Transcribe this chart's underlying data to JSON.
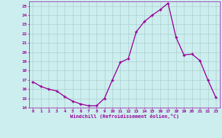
{
  "x": [
    0,
    1,
    2,
    3,
    4,
    5,
    6,
    7,
    8,
    9,
    10,
    11,
    12,
    13,
    14,
    15,
    16,
    17,
    18,
    19,
    20,
    21,
    22,
    23
  ],
  "y": [
    16.8,
    16.3,
    16.0,
    15.8,
    15.2,
    14.7,
    14.4,
    14.2,
    14.2,
    15.0,
    17.0,
    18.9,
    19.3,
    22.2,
    23.3,
    24.0,
    24.6,
    25.3,
    21.6,
    19.7,
    19.8,
    19.1,
    17.0,
    15.1
  ],
  "line_color": "#990099",
  "marker": "+",
  "marker_color": "#990099",
  "bg_color": "#cceeee",
  "grid_color": "#aacccc",
  "xlabel": "Windchill (Refroidissement éolien,°C)",
  "xlabel_color": "#990099",
  "tick_color": "#990099",
  "ylim": [
    14,
    25.5
  ],
  "xlim": [
    -0.5,
    23.5
  ],
  "yticks": [
    14,
    15,
    16,
    17,
    18,
    19,
    20,
    21,
    22,
    23,
    24,
    25
  ],
  "xticks": [
    0,
    1,
    2,
    3,
    4,
    5,
    6,
    7,
    8,
    9,
    10,
    11,
    12,
    13,
    14,
    15,
    16,
    17,
    18,
    19,
    20,
    21,
    22,
    23
  ],
  "xtick_labels": [
    "0",
    "1",
    "2",
    "3",
    "4",
    "5",
    "6",
    "7",
    "8",
    "9",
    "10",
    "11",
    "12",
    "13",
    "14",
    "15",
    "16",
    "17",
    "18",
    "19",
    "20",
    "21",
    "22",
    "23"
  ],
  "line_width": 1.0,
  "marker_size": 3.5
}
